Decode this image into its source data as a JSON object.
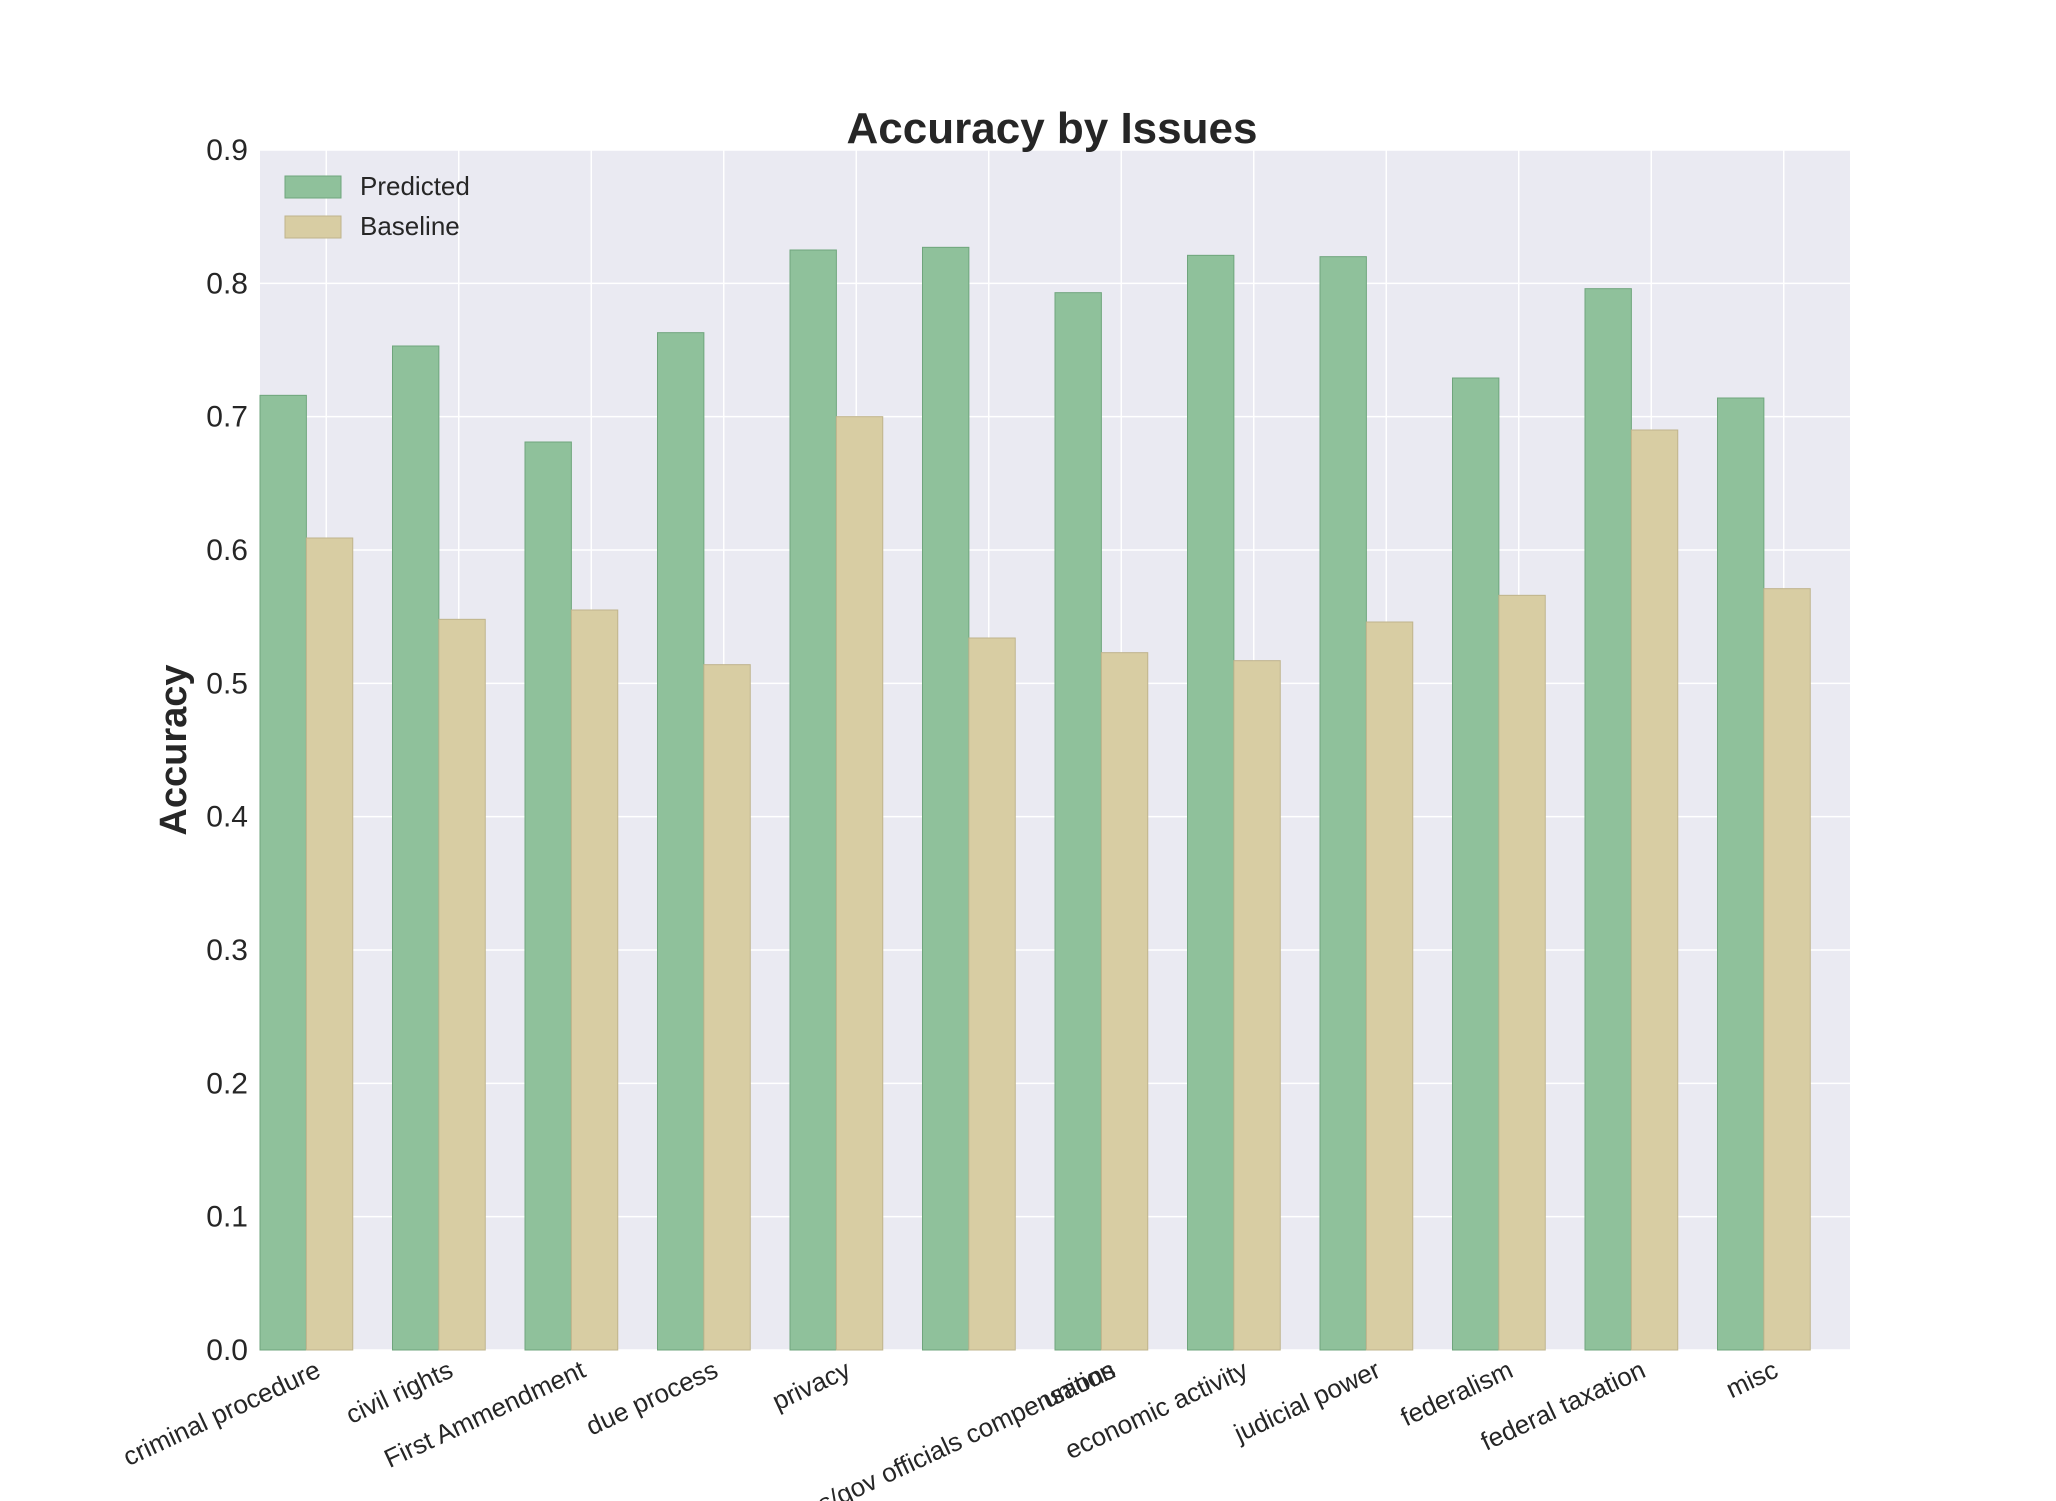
{
  "chart_data": {
    "type": "bar",
    "title": "Accuracy by Issues",
    "xlabel": "",
    "ylabel": "Accuracy",
    "ylim": [
      0,
      0.9
    ],
    "yticks": [
      "0.0",
      "0.1",
      "0.2",
      "0.3",
      "0.4",
      "0.5",
      "0.6",
      "0.7",
      "0.8",
      "0.9"
    ],
    "grid": true,
    "legend_position": "top-left",
    "categories": [
      "criminal procedure",
      "civil rights",
      "First Ammendment",
      "due process",
      "privacy",
      "",
      "unions",
      "economic activity",
      "judicial power",
      "federalism",
      "federal taxation",
      "misc"
    ],
    "extra_labels": [
      "attorneys/gov officials compensation"
    ],
    "series": [
      {
        "name": "Predicted",
        "color": "#8fc19b",
        "values": [
          0.716,
          0.753,
          0.681,
          0.763,
          0.825,
          0.827,
          0.793,
          0.821,
          0.82,
          0.729,
          0.796,
          0.714
        ]
      },
      {
        "name": "Baseline",
        "color": "#d8cda3",
        "values": [
          0.609,
          0.548,
          0.555,
          0.514,
          0.7,
          0.534,
          0.523,
          0.517,
          0.546,
          0.566,
          0.69,
          0.571
        ]
      }
    ]
  }
}
